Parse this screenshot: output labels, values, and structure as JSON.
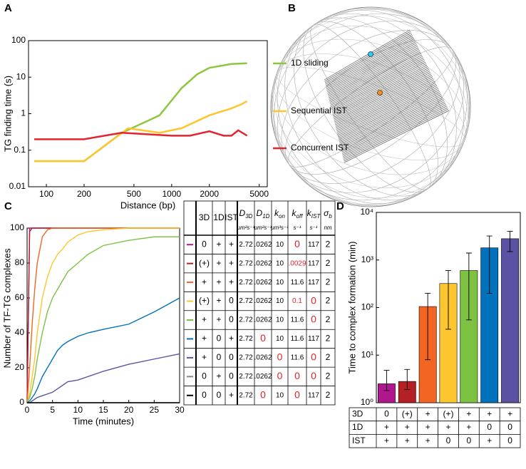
{
  "panel_labels": [
    "A",
    "B",
    "C",
    "D"
  ],
  "chart_data": [
    {
      "type": "line",
      "log_x": true,
      "log_y": true,
      "x_label": "Distance (bp)",
      "y_label": "TG finding time (s)",
      "xlim": [
        72,
        5800
      ],
      "ylim": [
        0.01,
        100
      ],
      "xticks": [
        100,
        200,
        500,
        1000,
        2000,
        5000
      ],
      "yticks": [
        0.01,
        0.1,
        1,
        10,
        100
      ],
      "series": [
        {
          "name": "1D sliding",
          "color": "#8dc63f",
          "x": [
            80,
            200,
            400,
            800,
            1200,
            1600,
            2000,
            3000,
            4000
          ],
          "values": [
            0.05,
            0.05,
            0.3,
            0.9,
            5,
            12,
            18,
            23,
            24
          ]
        },
        {
          "name": "Sequential IST",
          "color": "#fdc52f",
          "x": [
            80,
            200,
            450,
            800,
            1200,
            2000,
            3000,
            3600,
            4000
          ],
          "values": [
            0.05,
            0.05,
            0.4,
            0.3,
            0.4,
            0.9,
            1.4,
            1.8,
            2.2
          ]
        },
        {
          "name": "Concurrent IST",
          "color": "#e0252f",
          "x": [
            80,
            200,
            400,
            1000,
            1400,
            2000,
            2600,
            3000,
            3400,
            4000
          ],
          "values": [
            0.2,
            0.2,
            0.3,
            0.25,
            0.25,
            0.33,
            0.25,
            0.25,
            0.35,
            0.25
          ]
        }
      ]
    },
    {
      "type": "step",
      "x_label": "Time (minutes)",
      "y_label": "Number of TF-TG complexes",
      "xlim": [
        0,
        30
      ],
      "ylim": [
        0,
        100
      ],
      "xticks": [
        0,
        5,
        10,
        15,
        20,
        25,
        30
      ],
      "yticks": [
        0,
        20,
        40,
        60,
        80,
        100
      ],
      "x": [
        0,
        0.5,
        1,
        1.5,
        2,
        3,
        4,
        5,
        6,
        7,
        8,
        10,
        12,
        15,
        20,
        25,
        30
      ],
      "series": [
        {
          "color": "#b0178f",
          "values": [
            0,
            100,
            100,
            100,
            100,
            100,
            100,
            100,
            100,
            100,
            100,
            100,
            100,
            100,
            100,
            100,
            100
          ]
        },
        {
          "color": "#b52025",
          "values": [
            0,
            98,
            100,
            100,
            100,
            100,
            100,
            100,
            100,
            100,
            100,
            100,
            100,
            100,
            100,
            100,
            100
          ]
        },
        {
          "color": "#f26522",
          "values": [
            0,
            20,
            45,
            65,
            80,
            95,
            99,
            100,
            100,
            100,
            100,
            100,
            100,
            100,
            100,
            100,
            100
          ]
        },
        {
          "color": "#fdc52f",
          "values": [
            0,
            5,
            15,
            25,
            40,
            60,
            72,
            80,
            85,
            88,
            92,
            96,
            98,
            99,
            100,
            100,
            100
          ]
        },
        {
          "color": "#7dc242",
          "values": [
            0,
            3,
            8,
            15,
            25,
            40,
            52,
            60,
            65,
            70,
            75,
            80,
            85,
            90,
            93,
            95,
            95
          ]
        },
        {
          "color": "#0072bc",
          "values": [
            0,
            1,
            3,
            5,
            8,
            15,
            20,
            25,
            30,
            33,
            35,
            38,
            40,
            42,
            45,
            52,
            60
          ]
        },
        {
          "color": "#5b52a3",
          "values": [
            0,
            0,
            1,
            2,
            3,
            4,
            5,
            6,
            8,
            10,
            12,
            13,
            15,
            18,
            22,
            25,
            28
          ]
        },
        {
          "color": "#888888",
          "values": [
            0,
            0,
            0,
            0,
            0,
            0,
            0,
            0,
            0,
            0,
            0,
            0,
            0,
            0,
            0,
            0,
            0
          ]
        },
        {
          "color": "#000000",
          "values": [
            0,
            0,
            0,
            0,
            0,
            0,
            0,
            0,
            0,
            0,
            0,
            0,
            0,
            0,
            0,
            0,
            0
          ]
        }
      ]
    },
    {
      "type": "bar",
      "log_y": true,
      "y_label": "Time to complex formation (min)",
      "ylim": [
        1,
        10000
      ],
      "yticks": [
        {
          "value": 1,
          "label": "10⁰"
        },
        {
          "value": 10,
          "label": "10¹"
        },
        {
          "value": 100,
          "label": "10²"
        },
        {
          "value": 1000,
          "label": "10³"
        },
        {
          "value": 10000,
          "label": "10⁴"
        }
      ],
      "values": [
        2.5,
        2.8,
        105,
        320,
        600,
        1800,
        2800
      ],
      "error_low": [
        1.8,
        1.9,
        8,
        35,
        55,
        200,
        1500
      ],
      "error_high": [
        4.8,
        5,
        200,
        600,
        1400,
        3200,
        4000
      ],
      "colors": [
        "#b0178f",
        "#b52025",
        "#f26522",
        "#fdc52f",
        "#7dc242",
        "#0072bc",
        "#5b52a3"
      ],
      "conditions": [
        {
          "name": "3D",
          "values": [
            "0",
            "(+)",
            "+",
            "(+)",
            "+",
            "+",
            "+"
          ]
        },
        {
          "name": "1D",
          "values": [
            "+",
            "+",
            "+",
            "+",
            "+",
            "0",
            "0"
          ]
        },
        {
          "name": "IST",
          "values": [
            "+",
            "+",
            "+",
            "0",
            "0",
            "+",
            "0"
          ]
        }
      ]
    }
  ],
  "table_c": {
    "columns": [
      {
        "symbol": "3D"
      },
      {
        "symbol": "1D"
      },
      {
        "symbol": "IST"
      },
      {
        "symbol": "D",
        "sub": "3D",
        "unit": "μm²s⁻¹"
      },
      {
        "symbol": "D",
        "sub": "1D",
        "unit": "μm²s⁻¹"
      },
      {
        "symbol": "k",
        "sub": "on",
        "unit": "μm³s⁻¹"
      },
      {
        "symbol": "k",
        "sub": "off",
        "unit": "s⁻¹"
      },
      {
        "symbol": "k",
        "sub": "IST",
        "unit": "s⁻¹"
      },
      {
        "symbol": "σ",
        "sub": "b",
        "unit": "nm"
      }
    ],
    "rows": [
      [
        "0",
        "+",
        "+",
        "2.72",
        ".0262",
        "10",
        "0",
        "117",
        "2"
      ],
      [
        "(+)",
        "+",
        "+",
        "2.72",
        ".0262",
        "10",
        ".0029",
        "117",
        "2"
      ],
      [
        "+",
        "+",
        "+",
        "2.72",
        ".0262",
        "10",
        "11.6",
        "117",
        "2"
      ],
      [
        "(+)",
        "+",
        "0",
        "2.72",
        ".0262",
        "10",
        "0.1",
        "0",
        "2"
      ],
      [
        "+",
        "+",
        "0",
        "2.72",
        ".0262",
        "10",
        "11.6",
        "0",
        "2"
      ],
      [
        "+",
        "0",
        "+",
        "2.72",
        "0",
        "10",
        "11.6",
        "117",
        "2"
      ],
      [
        "+",
        "0",
        "0",
        "2.72",
        ".0262",
        "0",
        "11.6",
        "0",
        "2"
      ],
      [
        "0",
        "+",
        "0",
        "2.72",
        ".0262",
        "0",
        "0",
        "0",
        "2"
      ],
      [
        "0",
        "0",
        "+",
        "2.72",
        "0",
        "10",
        "0",
        "117",
        "2"
      ]
    ],
    "highlight_color": "#e0252f",
    "highlight": [
      [
        0,
        6
      ],
      [
        1,
        6
      ],
      [
        3,
        6
      ],
      [
        3,
        7
      ],
      [
        4,
        7
      ],
      [
        5,
        4
      ],
      [
        6,
        5
      ],
      [
        6,
        7
      ],
      [
        7,
        5
      ],
      [
        7,
        6
      ],
      [
        7,
        7
      ],
      [
        8,
        4
      ],
      [
        8,
        6
      ]
    ]
  }
}
